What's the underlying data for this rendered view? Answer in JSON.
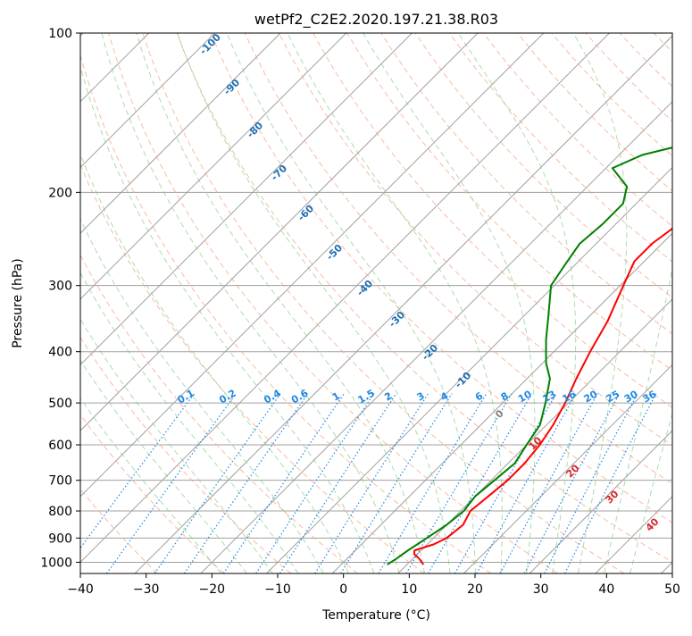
{
  "chart_data": {
    "type": "line",
    "title": "wetPf2_C2E2.2020.197.21.38.R03",
    "xlabel": "Temperature (°C)",
    "ylabel": "Pressure (hPa)",
    "xlim": [
      -40,
      50
    ],
    "ylim": [
      1050,
      100
    ],
    "yscale": "log",
    "skew_deg_per_decade_px": true,
    "x_ticks": [
      -40,
      -30,
      -20,
      -10,
      0,
      10,
      20,
      30,
      40,
      50
    ],
    "x_tick_labels": [
      "−40",
      "−30",
      "−20",
      "−10",
      "0",
      "10",
      "20",
      "30",
      "40",
      "50"
    ],
    "y_ticks": [
      100,
      200,
      300,
      400,
      500,
      600,
      700,
      800,
      900,
      1000
    ],
    "y_tick_labels": [
      "100",
      "200",
      "300",
      "400",
      "500",
      "600",
      "700",
      "800",
      "900",
      "1000"
    ],
    "grid": true,
    "colors": {
      "temperature": "#ff0000",
      "dewpoint": "#008000",
      "isotherm": "#a0a0a0",
      "dry_adiabat": "#f4a582",
      "moist_adiabat": "#7fc97f",
      "mixing_ratio": "#1e88e5",
      "dry_label": "#1f6fb2",
      "moist_label": "#d62728",
      "zero_label": "#808080"
    },
    "series": [
      {
        "key": "temperature",
        "points": [
          [
            12.5,
            1010
          ],
          [
            11.0,
            985
          ],
          [
            9.5,
            965
          ],
          [
            9.0,
            950
          ],
          [
            11.0,
            925
          ],
          [
            12.0,
            900
          ],
          [
            12.5,
            850
          ],
          [
            11.5,
            800
          ],
          [
            12.0,
            750
          ],
          [
            12.5,
            700
          ],
          [
            12.5,
            650
          ],
          [
            12.0,
            600
          ],
          [
            11.0,
            550
          ],
          [
            9.5,
            500
          ],
          [
            7.5,
            450
          ],
          [
            5.5,
            400
          ],
          [
            3.5,
            350
          ],
          [
            0.5,
            300
          ],
          [
            -1.5,
            270
          ],
          [
            -1.5,
            250
          ],
          [
            -0.5,
            230
          ],
          [
            1.5,
            210
          ],
          [
            4.0,
            195
          ],
          [
            7.0,
            180
          ],
          [
            10.0,
            160
          ],
          [
            14.0,
            140
          ],
          [
            18.0,
            120
          ],
          [
            20.5,
            110
          ],
          [
            22.0,
            100
          ]
        ]
      },
      {
        "key": "dewpoint",
        "points": [
          [
            7.0,
            1010
          ],
          [
            7.5,
            985
          ],
          [
            8.0,
            950
          ],
          [
            8.5,
            925
          ],
          [
            9.0,
            900
          ],
          [
            10.0,
            850
          ],
          [
            10.5,
            800
          ],
          [
            10.0,
            750
          ],
          [
            10.5,
            700
          ],
          [
            11.0,
            650
          ],
          [
            10.0,
            600
          ],
          [
            9.0,
            550
          ],
          [
            6.5,
            500
          ],
          [
            3.5,
            450
          ],
          [
            0.5,
            420
          ],
          [
            -3.0,
            380
          ],
          [
            -6.5,
            340
          ],
          [
            -10.5,
            300
          ],
          [
            -11.5,
            275
          ],
          [
            -12.5,
            250
          ],
          [
            -12.0,
            230
          ],
          [
            -12.0,
            210
          ],
          [
            -14.0,
            195
          ],
          [
            -19.0,
            180
          ],
          [
            -16.5,
            170
          ],
          [
            -10.0,
            160
          ],
          [
            -7.0,
            145
          ],
          [
            -4.0,
            130
          ],
          [
            -4.0,
            120
          ],
          [
            -2.0,
            110
          ],
          [
            1.5,
            100
          ]
        ]
      }
    ],
    "mixing_ratio_labels": [
      "0.1",
      "0.2",
      "0.4",
      "0.6",
      "1",
      "1.5",
      "2",
      "3",
      "4",
      "6",
      "8",
      "10",
      "13",
      "16",
      "20",
      "25",
      "30",
      "36"
    ],
    "mixing_ratio_values": [
      0.1,
      0.2,
      0.4,
      0.6,
      1,
      1.5,
      2,
      3,
      4,
      6,
      8,
      10,
      13,
      16,
      20,
      25,
      30,
      36
    ],
    "dry_adiabat_labels": [
      "-100",
      "-90",
      "-80",
      "-70",
      "-60",
      "-50",
      "-40",
      "-30",
      "-20",
      "-10"
    ],
    "moist_adiabat_labels": [
      "0",
      "10",
      "20",
      "30",
      "40"
    ]
  }
}
